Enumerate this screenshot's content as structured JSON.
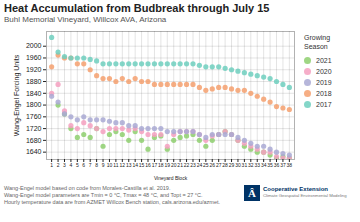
{
  "chart_data": {
    "type": "scatter",
    "title": "Heat Accumulation from Budbreak through July 15",
    "subtitle": "Buhl Memorial Vineyard, Willcox AVA, Arizona",
    "xlabel": "Vineyard Block",
    "ylabel": "Wang-Engel Forcing Units",
    "legend_title": "Growing\nSeason",
    "footnotes": [
      "Wang-Engel model based on code from Morales-Castilla et al. 2019.",
      "Wang-Engel model parameters are Tmin = 0 °C, Tmax = 48 °C, and Topt = 27 °C.",
      "Hourly temperature data are from AZMET Willcox Bench station, cals.arizona.edu/azmet."
    ],
    "logo": "Â",
    "credit": "Cooperative Extension",
    "credit_subtitle": "Climate Geospatial Environmental Modeling",
    "x": [
      1,
      2,
      3,
      4,
      5,
      6,
      7,
      8,
      9,
      10,
      11,
      12,
      13,
      14,
      15,
      16,
      17,
      18,
      19,
      20,
      21,
      22,
      23,
      24,
      25,
      26,
      27,
      28,
      29,
      30,
      31,
      32,
      33,
      34,
      35,
      36,
      37,
      38
    ],
    "series": [
      {
        "name": "2021",
        "color": "#8ecf6e",
        "values": [
          null,
          1800,
          1770,
          1720,
          1690,
          1700,
          1690,
          1720,
          1660,
          1700,
          1710,
          1700,
          1680,
          1710,
          1680,
          1650,
          1690,
          1695,
          1650,
          1680,
          1690,
          1695,
          1700,
          1680,
          1660,
          1680,
          1700,
          1710,
          1700,
          1680,
          1660,
          1650,
          1640,
          1640,
          1630,
          1620,
          1625,
          1620
        ]
      },
      {
        "name": "2020",
        "color": "#f4a0c0",
        "values": [
          1840,
          1870,
          1780,
          1730,
          1720,
          1740,
          1730,
          1720,
          1710,
          1720,
          1720,
          1720,
          1715,
          1720,
          1710,
          1700,
          1700,
          1700,
          1660,
          1700,
          1710,
          1710,
          1710,
          1700,
          1680,
          1695,
          1700,
          1710,
          1700,
          1680,
          1670,
          1660,
          1650,
          1640,
          1640,
          1625,
          1620,
          1620
        ]
      },
      {
        "name": "2019",
        "color": "#a9a9d4",
        "values": [
          1830,
          1810,
          1770,
          1760,
          1750,
          1760,
          1750,
          1750,
          1750,
          1745,
          1740,
          1740,
          1730,
          1730,
          1720,
          1720,
          1720,
          1720,
          1710,
          1710,
          1710,
          1710,
          1710,
          1700,
          1690,
          1700,
          1700,
          1700,
          1700,
          1690,
          1680,
          1670,
          1660,
          1660,
          1650,
          1640,
          1635,
          1630
        ]
      },
      {
        "name": "2018",
        "color": "#f4a06e",
        "values": [
          1930,
          1970,
          1960,
          1960,
          1940,
          1940,
          1920,
          1900,
          1890,
          1890,
          1880,
          1890,
          1880,
          1890,
          1880,
          1880,
          1870,
          1870,
          1870,
          1870,
          1870,
          1870,
          1870,
          1860,
          1850,
          1855,
          1860,
          1860,
          1855,
          1850,
          1850,
          1840,
          1830,
          1820,
          1810,
          1795,
          1790,
          1785
        ]
      },
      {
        "name": "2017",
        "color": "#6ecfbe",
        "values": [
          2030,
          1980,
          1965,
          1960,
          1960,
          1960,
          1955,
          1950,
          1940,
          1940,
          1940,
          1940,
          1940,
          1940,
          1940,
          1940,
          1940,
          1940,
          1940,
          1940,
          1940,
          1940,
          1940,
          1935,
          1930,
          1930,
          1930,
          1925,
          1920,
          1915,
          1910,
          1905,
          1900,
          1895,
          1890,
          1880,
          1870,
          1860
        ]
      }
    ],
    "xlim": [
      0.2,
      38.8
    ],
    "xticks": [
      1,
      2,
      3,
      4,
      5,
      6,
      7,
      8,
      9,
      10,
      11,
      12,
      13,
      14,
      15,
      16,
      17,
      18,
      19,
      20,
      21,
      22,
      23,
      24,
      25,
      26,
      27,
      28,
      29,
      30,
      31,
      32,
      33,
      34,
      35,
      36,
      37,
      38
    ],
    "ylim": [
      1615,
      2050
    ],
    "yticks": [
      1640,
      1680,
      1720,
      1760,
      1800,
      1840,
      1880,
      1920,
      1960,
      2000
    ],
    "grid": true
  }
}
